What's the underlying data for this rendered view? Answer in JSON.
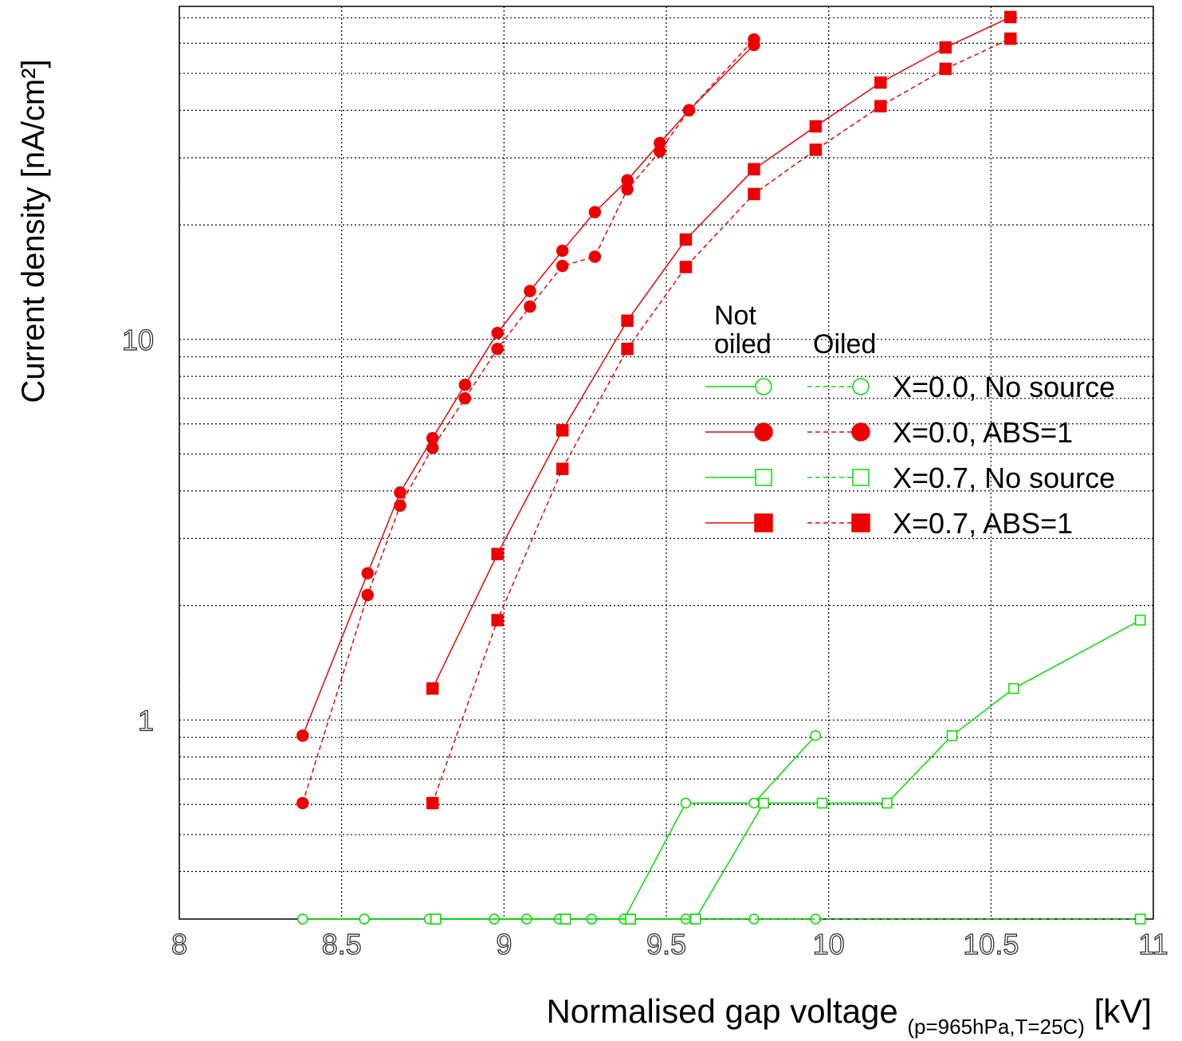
{
  "chart_data": {
    "type": "line",
    "x_label": "Normalised gap voltage",
    "x_label_sub": "(p=965hPa,T=25C)",
    "x_label_unit": "[kV]",
    "y_label": "Current density [nA/cm²]",
    "xlim": [
      8,
      11
    ],
    "xticks": [
      8,
      8.5,
      9,
      9.5,
      10,
      10.5,
      11
    ],
    "ylim": [
      0.3,
      75
    ],
    "yticks": [
      1,
      10
    ],
    "yminorticks": [
      0.4,
      0.5,
      0.6,
      0.7,
      0.8,
      0.9,
      2,
      3,
      4,
      5,
      6,
      7,
      8,
      9,
      20,
      30,
      40,
      50,
      60,
      70
    ],
    "log_y": true,
    "grid": true,
    "legend_columns": [
      "Not oiled",
      "Oiled"
    ],
    "series": [
      {
        "name": "X=0.0, No source",
        "color": "#00dd00",
        "marker": "circle",
        "filled": false,
        "not_oiled": {
          "x": [
            8.38,
            8.57,
            8.77,
            8.97,
            9.07,
            9.17,
            9.27,
            9.37,
            9.56,
            9.77,
            9.96
          ],
          "values": [
            0.3,
            0.3,
            0.3,
            0.3,
            0.3,
            0.3,
            0.3,
            0.3,
            0.605,
            0.605,
            0.91
          ]
        },
        "oiled": {
          "x": [
            8.38,
            8.57,
            8.77,
            8.97,
            9.07,
            9.17,
            9.27,
            9.37,
            9.56,
            9.77,
            9.96
          ],
          "values": [
            0.3,
            0.3,
            0.3,
            0.3,
            0.3,
            0.3,
            0.3,
            0.3,
            0.3,
            0.3,
            0.3
          ]
        }
      },
      {
        "name": "X=0.0, ABS=1",
        "color": "#ee0000",
        "marker": "circle",
        "filled": true,
        "not_oiled": {
          "x": [
            8.38,
            8.58,
            8.68,
            8.78,
            8.88,
            8.98,
            9.08,
            9.18,
            9.28,
            9.38,
            9.48,
            9.57,
            9.77
          ],
          "values": [
            0.91,
            2.43,
            3.96,
            5.5,
            7.6,
            10.4,
            13.4,
            17.1,
            21.6,
            26.2,
            32.8,
            40.0,
            59.4
          ]
        },
        "oiled": {
          "x": [
            8.38,
            8.58,
            8.68,
            8.78,
            8.88,
            8.98,
            9.08,
            9.18,
            9.28,
            9.38,
            9.48,
            9.57,
            9.77
          ],
          "values": [
            0.605,
            2.13,
            3.66,
            5.19,
            7.0,
            9.44,
            12.2,
            15.6,
            16.5,
            24.8,
            31.2,
            40.0,
            61.4
          ]
        }
      },
      {
        "name": "X=0.7, No source",
        "color": "#00dd00",
        "marker": "square",
        "filled": false,
        "not_oiled": {
          "x": [
            8.79,
            9.19,
            9.39,
            9.59,
            9.8,
            9.98,
            10.18,
            10.38,
            10.57,
            10.96
          ],
          "values": [
            0.3,
            0.3,
            0.3,
            0.3,
            0.605,
            0.605,
            0.605,
            0.91,
            1.21,
            1.83
          ]
        },
        "oiled": {
          "x": [
            8.79,
            9.19,
            9.39,
            9.59,
            10.96
          ],
          "values": [
            0.3,
            0.3,
            0.3,
            0.3,
            0.3
          ]
        }
      },
      {
        "name": "X=0.7, ABS=1",
        "color": "#ee0000",
        "marker": "square",
        "filled": true,
        "not_oiled": {
          "x": [
            8.78,
            8.98,
            9.18,
            9.38,
            9.56,
            9.77,
            9.96,
            10.16,
            10.36,
            10.56
          ],
          "values": [
            1.21,
            2.73,
            5.77,
            11.2,
            18.3,
            28.0,
            36.3,
            47.3,
            58.5,
            70.3
          ]
        },
        "oiled": {
          "x": [
            8.78,
            8.98,
            9.18,
            9.38,
            9.56,
            9.77,
            9.96,
            10.16,
            10.36,
            10.56
          ],
          "values": [
            0.605,
            1.83,
            4.57,
            9.44,
            15.5,
            24.1,
            31.5,
            41.0,
            51.4,
            61.7
          ]
        }
      }
    ]
  }
}
